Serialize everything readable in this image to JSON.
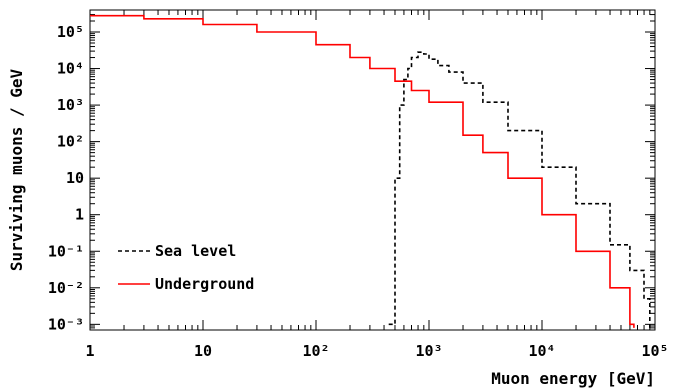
{
  "chart_data": {
    "type": "line",
    "xlabel": "Muon energy [GeV]",
    "ylabel": "Surviving muons / GeV",
    "x_scale": "log",
    "y_scale": "log",
    "xlim": [
      1,
      100000
    ],
    "ylim": [
      0.0007,
      400000
    ],
    "grid": false,
    "legend_position": "bottom-left",
    "x_ticks": [
      {
        "value": 1,
        "label": "1"
      },
      {
        "value": 10,
        "label": "10"
      },
      {
        "value": 100,
        "label": "10²"
      },
      {
        "value": 1000,
        "label": "10³"
      },
      {
        "value": 10000,
        "label": "10⁴"
      },
      {
        "value": 100000,
        "label": "10⁵"
      }
    ],
    "y_ticks": [
      {
        "value": 0.001,
        "label": "10⁻³"
      },
      {
        "value": 0.01,
        "label": "10⁻²"
      },
      {
        "value": 0.1,
        "label": "10⁻¹"
      },
      {
        "value": 1,
        "label": "1"
      },
      {
        "value": 10,
        "label": "10"
      },
      {
        "value": 100,
        "label": "10²"
      },
      {
        "value": 1000,
        "label": "10³"
      },
      {
        "value": 10000,
        "label": "10⁴"
      },
      {
        "value": 100000,
        "label": "10⁵"
      }
    ],
    "series": [
      {
        "name": "Sea level",
        "color": "#000000",
        "style": "dashed",
        "x": [
          440,
          500,
          550,
          600,
          650,
          700,
          800,
          900,
          1000,
          1200,
          1500,
          2000,
          3000,
          5000,
          10000,
          20000,
          40000,
          60000,
          80000,
          90000
        ],
        "y": [
          0.001,
          10,
          1000,
          5000,
          10000,
          20000,
          28000,
          25000,
          18000,
          12000,
          8000,
          4000,
          1200,
          200,
          20,
          2,
          0.15,
          0.03,
          0.005,
          0.0008
        ]
      },
      {
        "name": "Underground",
        "color": "#ff0000",
        "style": "solid",
        "x": [
          1,
          3,
          10,
          30,
          100,
          200,
          300,
          500,
          700,
          1000,
          2000,
          3000,
          5000,
          10000,
          20000,
          40000,
          60000,
          65000
        ],
        "y": [
          280000,
          230000,
          160000,
          100000,
          45000,
          20000,
          10000,
          4500,
          2500,
          1200,
          150,
          50,
          10,
          1,
          0.1,
          0.01,
          0.001,
          0.0008
        ]
      }
    ]
  }
}
